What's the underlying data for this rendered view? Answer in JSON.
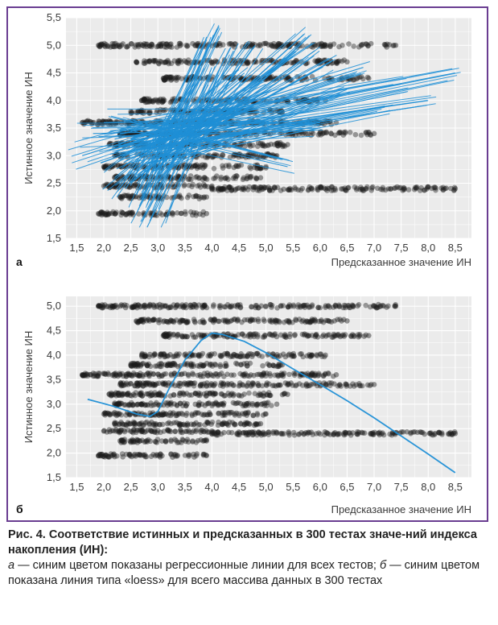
{
  "caption": {
    "figure_label": "Рис. 4.",
    "title_text": "Соответствие истинных и предсказанных в 300 тестах значе-ний индекса накопления (ИН):",
    "letter_a": "а",
    "desc_a": " — синим цветом показаны регрессионные линии для всех тестов; ",
    "letter_b": "б",
    "desc_b": " — синим цветом показана линия типа «loess» для всего массива данных в 300 тестах"
  },
  "colors": {
    "frame": "#6a3d91",
    "panel_bg": "#ebebeb",
    "grid": "#ffffff",
    "points": "#1c1c1c",
    "lines": "#1f8fd6"
  },
  "chart_data": [
    {
      "panel": "а",
      "type": "scatter",
      "xlabel": "Предсказанное значение ИН",
      "ylabel": "Истинное значение ИН",
      "xlim": [
        1.3,
        8.8
      ],
      "ylim": [
        1.5,
        5.5
      ],
      "xticks": [
        "1,5",
        "2,0",
        "2,5",
        "3,0",
        "3,5",
        "4,0",
        "4,5",
        "5,0",
        "5,5",
        "6,0",
        "6,5",
        "7,0",
        "7,5",
        "8,0",
        "8,5"
      ],
      "yticks": [
        "1,5",
        "2,0",
        "2,5",
        "3,0",
        "3,5",
        "4,0",
        "4,5",
        "5,0",
        "5,5"
      ],
      "grid": true,
      "point_rows": [
        {
          "y": 5.0,
          "x_range": [
            1.9,
            7.4
          ]
        },
        {
          "y": 4.7,
          "x_range": [
            2.6,
            6.5
          ]
        },
        {
          "y": 4.4,
          "x_range": [
            3.1,
            6.9
          ]
        },
        {
          "y": 4.0,
          "x_range": [
            2.7,
            6.1
          ]
        },
        {
          "y": 3.8,
          "x_range": [
            2.5,
            5.3
          ]
        },
        {
          "y": 3.6,
          "x_range": [
            1.6,
            6.3
          ]
        },
        {
          "y": 3.4,
          "x_range": [
            2.3,
            7.0
          ]
        },
        {
          "y": 3.2,
          "x_range": [
            2.1,
            5.4
          ]
        },
        {
          "y": 3.0,
          "x_range": [
            2.2,
            5.2
          ]
        },
        {
          "y": 2.8,
          "x_range": [
            2.0,
            5.0
          ]
        },
        {
          "y": 2.6,
          "x_range": [
            2.2,
            4.9
          ]
        },
        {
          "y": 2.45,
          "x_range": [
            2.0,
            4.0
          ]
        },
        {
          "y": 2.4,
          "x_range": [
            4.0,
            8.5
          ]
        },
        {
          "y": 2.25,
          "x_range": [
            2.3,
            3.9
          ]
        },
        {
          "y": 1.95,
          "x_range": [
            1.9,
            3.9
          ]
        }
      ],
      "series": [
        {
          "x": [
            1.6,
            4.5
          ],
          "y": [
            3.0,
            3.9
          ]
        },
        {
          "x": [
            1.8,
            6.0
          ],
          "y": [
            3.4,
            3.5
          ]
        },
        {
          "x": [
            2.0,
            5.0
          ],
          "y": [
            3.6,
            3.7
          ]
        },
        {
          "x": [
            2.2,
            8.5
          ],
          "y": [
            3.3,
            4.5
          ]
        },
        {
          "x": [
            2.3,
            7.5
          ],
          "y": [
            3.4,
            4.3
          ]
        },
        {
          "x": [
            2.4,
            8.0
          ],
          "y": [
            3.2,
            4.0
          ]
        },
        {
          "x": [
            2.5,
            6.8
          ],
          "y": [
            3.3,
            4.6
          ]
        },
        {
          "x": [
            2.5,
            5.5
          ],
          "y": [
            2.5,
            4.8
          ]
        },
        {
          "x": [
            2.6,
            4.1
          ],
          "y": [
            2.3,
            5.3
          ]
        },
        {
          "x": [
            2.7,
            3.9
          ],
          "y": [
            2.2,
            5.1
          ]
        },
        {
          "x": [
            2.8,
            4.4
          ],
          "y": [
            1.7,
            4.9
          ]
        },
        {
          "x": [
            2.9,
            5.7
          ],
          "y": [
            2.7,
            5.2
          ]
        },
        {
          "x": [
            3.0,
            4.8
          ],
          "y": [
            2.5,
            5.0
          ]
        },
        {
          "x": [
            2.2,
            4.6
          ],
          "y": [
            2.6,
            4.5
          ]
        },
        {
          "x": [
            2.4,
            5.1
          ],
          "y": [
            2.9,
            4.2
          ]
        },
        {
          "x": [
            3.1,
            6.2
          ],
          "y": [
            3.0,
            4.7
          ]
        },
        {
          "x": [
            2.3,
            5.4
          ],
          "y": [
            3.5,
            2.8
          ]
        },
        {
          "x": [
            2.6,
            7.2
          ],
          "y": [
            3.1,
            3.9
          ]
        },
        {
          "x": [
            2.1,
            4.3
          ],
          "y": [
            3.1,
            3.8
          ]
        },
        {
          "x": [
            2.9,
            4.0
          ],
          "y": [
            2.0,
            4.6
          ]
        },
        {
          "x": [
            3.2,
            6.5
          ],
          "y": [
            2.9,
            4.2
          ]
        },
        {
          "x": [
            2.4,
            3.8
          ],
          "y": [
            2.4,
            4.4
          ]
        },
        {
          "x": [
            3.3,
            5.9
          ],
          "y": [
            3.1,
            4.9
          ]
        },
        {
          "x": [
            2.7,
            6.0
          ],
          "y": [
            3.0,
            3.6
          ]
        }
      ]
    },
    {
      "panel": "б",
      "type": "scatter",
      "xlabel": "Предсказанное значение ИН",
      "ylabel": "Истинное значение ИН",
      "xlim": [
        1.3,
        8.8
      ],
      "ylim": [
        1.5,
        5.2
      ],
      "xticks": [
        "1,5",
        "2,0",
        "2,5",
        "3,0",
        "3,5",
        "4,0",
        "4,5",
        "5,0",
        "5,5",
        "6,0",
        "6,5",
        "7,0",
        "7,5",
        "8,0",
        "8,5"
      ],
      "yticks": [
        "1,5",
        "2,0",
        "2,5",
        "3,0",
        "3,5",
        "4,0",
        "4,5",
        "5,0"
      ],
      "grid": true,
      "point_rows": [
        {
          "y": 5.0,
          "x_range": [
            1.9,
            7.4
          ]
        },
        {
          "y": 4.7,
          "x_range": [
            2.6,
            6.5
          ]
        },
        {
          "y": 4.4,
          "x_range": [
            3.1,
            6.9
          ]
        },
        {
          "y": 4.0,
          "x_range": [
            2.7,
            6.1
          ]
        },
        {
          "y": 3.8,
          "x_range": [
            2.5,
            5.3
          ]
        },
        {
          "y": 3.6,
          "x_range": [
            1.6,
            6.3
          ]
        },
        {
          "y": 3.4,
          "x_range": [
            2.3,
            7.0
          ]
        },
        {
          "y": 3.2,
          "x_range": [
            2.1,
            5.4
          ]
        },
        {
          "y": 3.0,
          "x_range": [
            2.2,
            5.2
          ]
        },
        {
          "y": 2.8,
          "x_range": [
            2.0,
            5.0
          ]
        },
        {
          "y": 2.6,
          "x_range": [
            2.2,
            4.9
          ]
        },
        {
          "y": 2.45,
          "x_range": [
            2.0,
            4.0
          ]
        },
        {
          "y": 2.4,
          "x_range": [
            4.0,
            8.5
          ]
        },
        {
          "y": 2.25,
          "x_range": [
            2.3,
            3.9
          ]
        },
        {
          "y": 1.95,
          "x_range": [
            1.9,
            3.9
          ]
        }
      ],
      "series": [
        {
          "x": [
            1.7,
            2.2,
            2.6,
            2.85,
            3.0,
            3.2,
            3.5,
            3.8,
            4.0,
            4.2,
            4.6,
            5.0,
            5.5,
            6.0,
            6.5,
            7.0,
            7.5,
            8.0,
            8.5
          ],
          "y": [
            3.1,
            2.95,
            2.8,
            2.75,
            2.85,
            3.3,
            3.9,
            4.3,
            4.45,
            4.42,
            4.28,
            4.05,
            3.72,
            3.4,
            3.07,
            2.72,
            2.35,
            1.98,
            1.6
          ]
        }
      ]
    }
  ]
}
